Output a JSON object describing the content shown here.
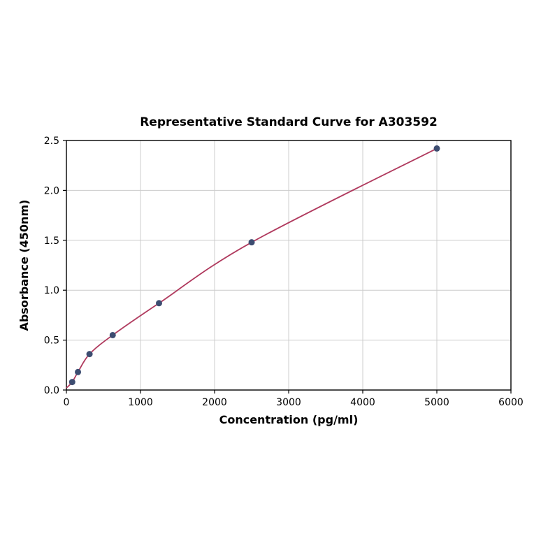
{
  "chart_data": {
    "type": "scatter",
    "title": "Representative Standard Curve for A303592",
    "xlabel": "Concentration (pg/ml)",
    "ylabel": "Absorbance (450nm)",
    "xlim": [
      0,
      6000
    ],
    "ylim": [
      0,
      2.5
    ],
    "x_ticks": [
      {
        "value": 0,
        "label": "0"
      },
      {
        "value": 1000,
        "label": "1000"
      },
      {
        "value": 2000,
        "label": "2000"
      },
      {
        "value": 3000,
        "label": "3000"
      },
      {
        "value": 4000,
        "label": "4000"
      },
      {
        "value": 5000,
        "label": "5000"
      },
      {
        "value": 6000,
        "label": "6000"
      }
    ],
    "y_ticks": [
      {
        "value": 0.0,
        "label": "0.0"
      },
      {
        "value": 0.5,
        "label": "0.5"
      },
      {
        "value": 1.0,
        "label": "1.0"
      },
      {
        "value": 1.5,
        "label": "1.5"
      },
      {
        "value": 2.0,
        "label": "2.0"
      },
      {
        "value": 2.5,
        "label": "2.5"
      }
    ],
    "points": [
      {
        "x": 78,
        "y": 0.08
      },
      {
        "x": 156,
        "y": 0.18
      },
      {
        "x": 312,
        "y": 0.36
      },
      {
        "x": 625,
        "y": 0.55
      },
      {
        "x": 1250,
        "y": 0.87
      },
      {
        "x": 2500,
        "y": 1.48
      },
      {
        "x": 5000,
        "y": 2.42
      }
    ],
    "curve_start": {
      "x": 0,
      "y": 0.02
    },
    "grid": true,
    "legend": "none",
    "colors": {
      "curve": "#b03a5e",
      "point": "#3d4d71",
      "grid": "#cccccc",
      "axis": "#000000",
      "background": "#ffffff"
    }
  }
}
